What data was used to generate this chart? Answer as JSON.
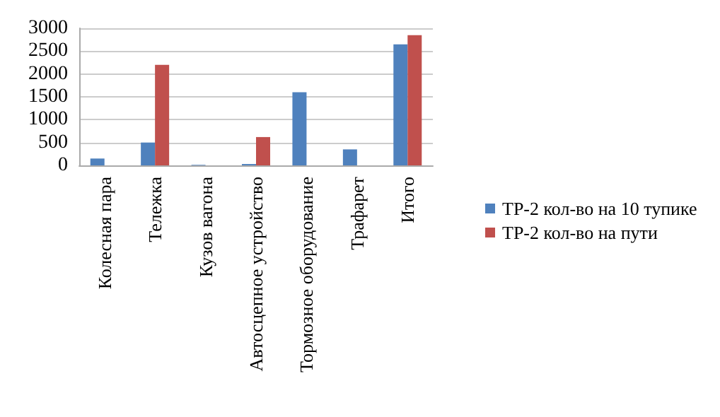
{
  "chart_data": {
    "type": "bar",
    "categories": [
      "Колесная пара",
      "Тележка",
      "Кузов вагона",
      "Автосцепное устройство",
      "Тормозное оборудование",
      "Трафарет",
      "Итого"
    ],
    "series": [
      {
        "name": "ТР-2 кол-во на 10 тупике",
        "color": "#4f81bd",
        "values": [
          150,
          500,
          10,
          30,
          1600,
          350,
          2650
        ]
      },
      {
        "name": "ТР-2 кол-во на пути",
        "color": "#c0504d",
        "values": [
          null,
          2200,
          null,
          620,
          null,
          null,
          2850
        ]
      }
    ],
    "ylim": [
      0,
      3000
    ],
    "yticks": [
      0,
      500,
      1000,
      1500,
      2000,
      2500,
      3000
    ],
    "grid": "y",
    "legend": "right"
  }
}
